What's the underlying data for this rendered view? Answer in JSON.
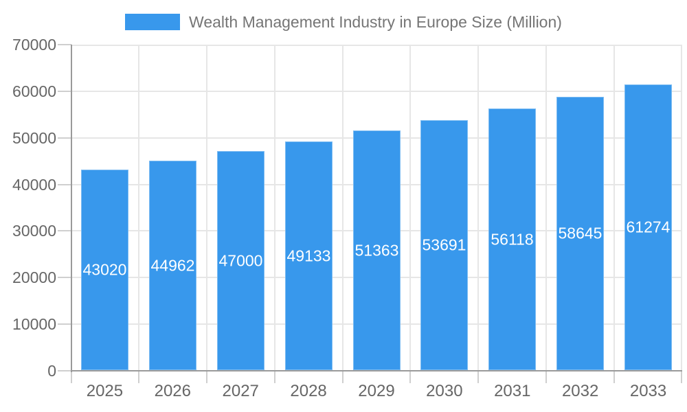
{
  "chart_data": {
    "type": "bar",
    "title": "Wealth Management Industry in Europe Size (Million)",
    "categories": [
      "2025",
      "2026",
      "2027",
      "2028",
      "2029",
      "2030",
      "2031",
      "2032",
      "2033"
    ],
    "values": [
      43020,
      44962,
      47000,
      49133,
      51363,
      53691,
      56118,
      58645,
      61274
    ],
    "series_name": "Wealth Management Industry in Europe Size (Million)",
    "ylim": [
      0,
      70000
    ],
    "yticks": [
      0,
      10000,
      20000,
      30000,
      40000,
      50000,
      60000,
      70000
    ],
    "grid": true,
    "legend_position": "top",
    "value_labels": "inside-center",
    "colors": {
      "bar": "#3898ec",
      "axis": "#9a9a9a",
      "gridline": "#e6e6e6",
      "tick": "#cfcfcf",
      "axis_label": "#666666",
      "title": "#757575",
      "value_label": "#ffffff",
      "background": "#ffffff"
    }
  }
}
